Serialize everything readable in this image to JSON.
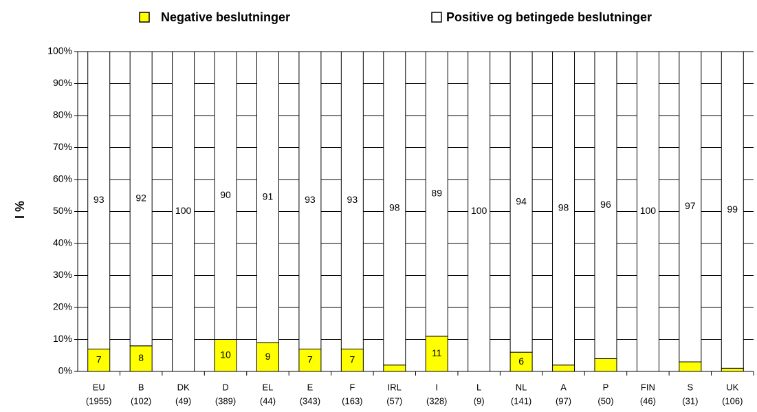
{
  "chart_data": {
    "type": "stacked_bar_100",
    "y_axis_label": "I %",
    "categories": [
      "EU",
      "B",
      "DK",
      "D",
      "EL",
      "E",
      "F",
      "IRL",
      "I",
      "L",
      "NL",
      "A",
      "P",
      "FIN",
      "S",
      "UK"
    ],
    "sample_sizes": [
      "(1955)",
      "(102)",
      "(49)",
      "(389)",
      "(44)",
      "(343)",
      "(163)",
      "(57)",
      "(328)",
      "(9)",
      "(141)",
      "(97)",
      "(50)",
      "(46)",
      "(31)",
      "(106)"
    ],
    "series": [
      {
        "name": "Negative beslutninger",
        "color": "#ffff00",
        "values": [
          7,
          8,
          0,
          10,
          9,
          7,
          7,
          2,
          11,
          0,
          6,
          2,
          4,
          0,
          3,
          1
        ]
      },
      {
        "name": "Positive og betingede beslutninger",
        "color": "#ffffff",
        "values": [
          93,
          92,
          100,
          90,
          91,
          93,
          93,
          98,
          89,
          100,
          94,
          98,
          96,
          100,
          97,
          99
        ]
      }
    ],
    "ylim": [
      0,
      100
    ],
    "yticks": [
      {
        "value": 0,
        "label": "0%"
      },
      {
        "value": 10,
        "label": "10%"
      },
      {
        "value": 20,
        "label": "20%"
      },
      {
        "value": 30,
        "label": "30%"
      },
      {
        "value": 40,
        "label": "40%"
      },
      {
        "value": 50,
        "label": "50%"
      },
      {
        "value": 60,
        "label": "60%"
      },
      {
        "value": 70,
        "label": "70%"
      },
      {
        "value": 80,
        "label": "80%"
      },
      {
        "value": 90,
        "label": "90%"
      },
      {
        "value": 100,
        "label": "100%"
      }
    ],
    "grid": true
  }
}
